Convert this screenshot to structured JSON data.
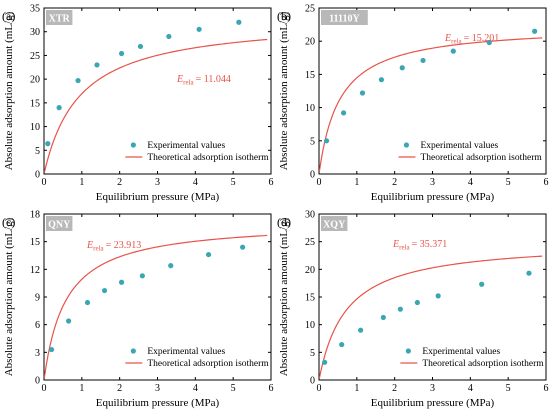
{
  "chart_data": [
    {
      "type": "scatter",
      "panel": "(a)",
      "tag": "XTR",
      "xlabel": "Equilibrium pressure (MPa)",
      "ylabel": "Absolute adsorption amount (mL/g)",
      "xlim": [
        0,
        6
      ],
      "ylim": [
        0,
        35
      ],
      "xticks": [
        0,
        1,
        2,
        3,
        4,
        5,
        6
      ],
      "yticks": [
        0,
        5,
        10,
        15,
        20,
        25,
        30,
        35
      ],
      "erela_symbol": "E",
      "erela_sub": "rela",
      "erela_value": "= 11.044",
      "legend": [
        "Experimental values",
        "Theoretical adsorption isotherm"
      ],
      "experimental": [
        [
          0.1,
          6.4
        ],
        [
          0.4,
          14.0
        ],
        [
          0.9,
          19.7
        ],
        [
          1.4,
          23.0
        ],
        [
          2.05,
          25.4
        ],
        [
          2.55,
          26.9
        ],
        [
          3.3,
          29.0
        ],
        [
          4.1,
          30.5
        ],
        [
          5.15,
          32.0
        ]
      ],
      "isotherm": {
        "a": 32.9,
        "b": 1.06
      }
    },
    {
      "type": "scatter",
      "panel": "(b)",
      "tag": "11110Y",
      "xlabel": "Equilibrium pressure (MPa)",
      "ylabel": "Absolute adsorption amount (mL/g)",
      "xlim": [
        0,
        6
      ],
      "ylim": [
        0,
        25
      ],
      "xticks": [
        0,
        1,
        2,
        3,
        4,
        5,
        6
      ],
      "yticks": [
        0,
        5,
        10,
        15,
        20,
        25
      ],
      "erela_symbol": "E",
      "erela_sub": "rela",
      "erela_value": "= 15.201",
      "legend": [
        "Experimental values",
        "Theoretical adsorption isotherm"
      ],
      "experimental": [
        [
          0.2,
          5.0
        ],
        [
          0.65,
          9.2
        ],
        [
          1.15,
          12.2
        ],
        [
          1.65,
          14.2
        ],
        [
          2.2,
          16.0
        ],
        [
          2.75,
          17.1
        ],
        [
          3.55,
          18.5
        ],
        [
          4.5,
          19.8
        ],
        [
          5.7,
          21.5
        ]
      ],
      "isotherm": {
        "a": 22.4,
        "b": 1.83
      }
    },
    {
      "type": "scatter",
      "panel": "(c)",
      "tag": "QNY",
      "xlabel": "Equilibrium pressure (MPa)",
      "ylabel": "Absolute adsorption amount (mL/g)",
      "xlim": [
        0,
        6
      ],
      "ylim": [
        0,
        18
      ],
      "xticks": [
        0,
        1,
        2,
        3,
        4,
        5,
        6
      ],
      "yticks": [
        0,
        3,
        6,
        9,
        12,
        15,
        18
      ],
      "erela_symbol": "E",
      "erela_sub": "rela",
      "erela_value": "= 23.913",
      "legend": [
        "Experimental values",
        "Theoretical adsorption isotherm"
      ],
      "experimental": [
        [
          0.2,
          3.3
        ],
        [
          0.65,
          6.4
        ],
        [
          1.15,
          8.4
        ],
        [
          1.6,
          9.7
        ],
        [
          2.05,
          10.6
        ],
        [
          2.6,
          11.3
        ],
        [
          3.35,
          12.4
        ],
        [
          4.35,
          13.6
        ],
        [
          5.25,
          14.4
        ]
      ],
      "isotherm": {
        "a": 17.2,
        "b": 1.74
      }
    },
    {
      "type": "scatter",
      "panel": "(d)",
      "tag": "XQY",
      "xlabel": "Equilibrium pressure (MPa)",
      "ylabel": "Absolute adsorption amount (mL/g)",
      "xlim": [
        0,
        6
      ],
      "ylim": [
        0,
        30
      ],
      "xticks": [
        0,
        1,
        2,
        3,
        4,
        5,
        6
      ],
      "yticks": [
        0,
        5,
        10,
        15,
        20,
        25,
        30
      ],
      "erela_symbol": "E",
      "erela_sub": "rela",
      "erela_value": "= 35.371",
      "legend": [
        "Experimental values",
        "Theoretical adsorption isotherm"
      ],
      "experimental": [
        [
          0.15,
          3.2
        ],
        [
          0.6,
          6.4
        ],
        [
          1.1,
          9.0
        ],
        [
          1.7,
          11.3
        ],
        [
          2.15,
          12.8
        ],
        [
          2.6,
          14.0
        ],
        [
          3.15,
          15.2
        ],
        [
          4.3,
          17.3
        ],
        [
          5.55,
          19.3
        ]
      ],
      "isotherm": {
        "a": 25.1,
        "b": 1.4
      }
    }
  ]
}
